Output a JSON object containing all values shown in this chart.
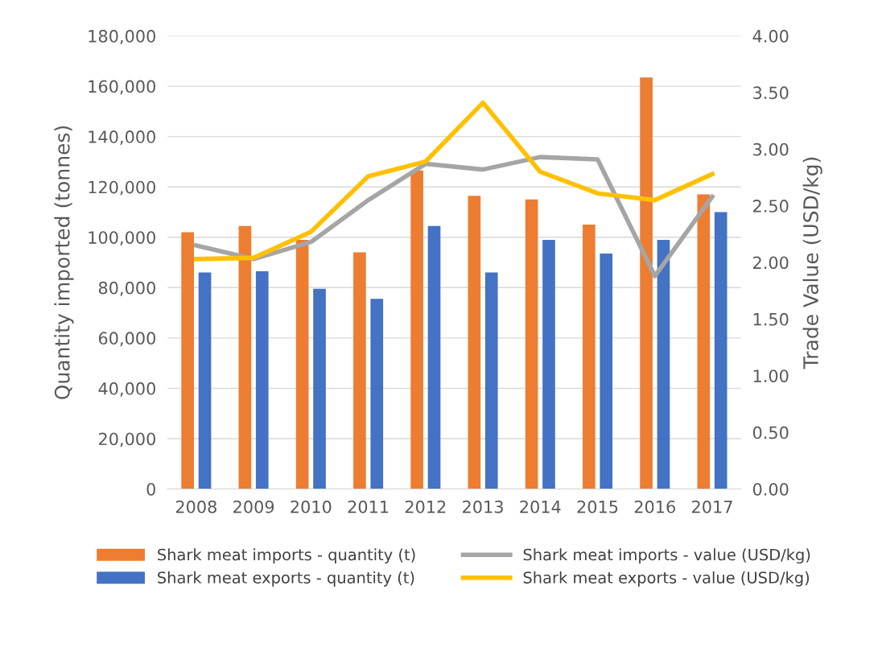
{
  "chart_data": {
    "type": "bar",
    "ylabel": "Quantity imported (tonnes)",
    "y2label": "Trade Value (USD/kg)",
    "categories": [
      "2008",
      "2009",
      "2010",
      "2011",
      "2012",
      "2013",
      "2014",
      "2015",
      "2016",
      "2017"
    ],
    "series": [
      {
        "name": "Shark meat imports - quantity (t)",
        "color": "#ed7d31",
        "values": [
          102000,
          104500,
          99000,
          94000,
          126500,
          116500,
          115000,
          105000,
          163500,
          117000
        ]
      },
      {
        "name": "Shark meat exports - quantity (t)",
        "color": "#4472c4",
        "values": [
          86000,
          86500,
          79500,
          75500,
          104500,
          86000,
          99000,
          93500,
          99000,
          110000
        ]
      },
      {
        "name": "Shark meat imports - value (USD/kg)",
        "color": "#a5a5a5",
        "type": "line",
        "axis": "y2",
        "values": [
          2.15,
          2.03,
          2.18,
          2.55,
          2.87,
          2.82,
          2.93,
          2.91,
          1.88,
          2.58
        ]
      },
      {
        "name": "Shark meat exports - value (USD/kg)",
        "color": "#ffc000",
        "type": "line",
        "axis": "y2",
        "values": [
          2.03,
          2.04,
          2.27,
          2.76,
          2.89,
          3.41,
          2.8,
          2.61,
          2.55,
          2.78
        ]
      }
    ],
    "ylim": [
      0,
      180000
    ],
    "yticks": [
      {
        "value": 0,
        "label": "0"
      },
      {
        "value": 20000,
        "label": "20,000"
      },
      {
        "value": 40000,
        "label": "40,000"
      },
      {
        "value": 60000,
        "label": "60,000"
      },
      {
        "value": 80000,
        "label": "80,000"
      },
      {
        "value": 100000,
        "label": "100,000"
      },
      {
        "value": 120000,
        "label": "120,000"
      },
      {
        "value": 140000,
        "label": "140,000"
      },
      {
        "value": 160000,
        "label": "160,000"
      },
      {
        "value": 180000,
        "label": "180,000"
      }
    ],
    "y2lim": [
      0,
      4
    ],
    "y2ticks": [
      {
        "value": 0,
        "label": "0.00"
      },
      {
        "value": 0.5,
        "label": "0.50"
      },
      {
        "value": 1,
        "label": "1.00"
      },
      {
        "value": 1.5,
        "label": "1.50"
      },
      {
        "value": 2,
        "label": "2.00"
      },
      {
        "value": 2.5,
        "label": "2.50"
      },
      {
        "value": 3,
        "label": "3.00"
      },
      {
        "value": 3.5,
        "label": "3.50"
      },
      {
        "value": 4,
        "label": "4.00"
      }
    ],
    "grid": "y",
    "legend": "bottom",
    "marker": "none",
    "line_style": "solid"
  }
}
